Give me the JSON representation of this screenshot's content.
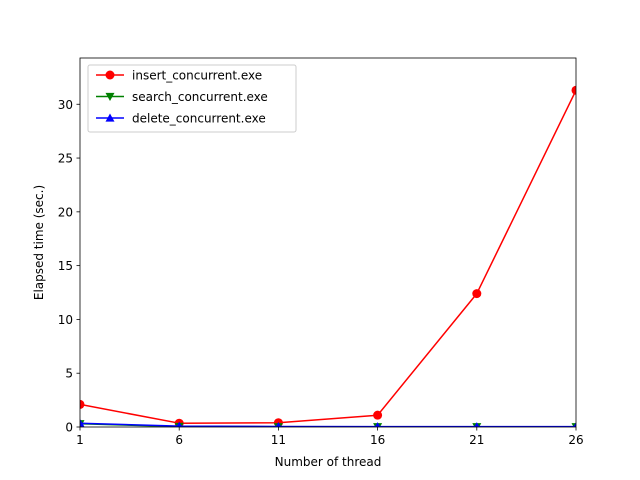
{
  "chart_data": {
    "type": "line",
    "title": "",
    "xlabel": "Number of thread",
    "ylabel": "Elapsed time (sec.)",
    "x": [
      1,
      6,
      11,
      16,
      21,
      26
    ],
    "xlim": [
      1,
      26
    ],
    "ylim": [
      0,
      34.3
    ],
    "xticks": [
      1,
      6,
      11,
      16,
      21,
      26
    ],
    "yticks": [
      0,
      5,
      10,
      15,
      20,
      25,
      30
    ],
    "grid": false,
    "legend_position": "top-left",
    "series": [
      {
        "name": "insert_concurrent.exe",
        "color": "#ff0000",
        "marker": "circle",
        "values": [
          2.1,
          0.35,
          0.4,
          1.1,
          12.4,
          31.3
        ]
      },
      {
        "name": "search_concurrent.exe",
        "color": "#008000",
        "marker": "triangle-down",
        "values": [
          0.3,
          0.05,
          0.03,
          0.02,
          0.02,
          0.02
        ]
      },
      {
        "name": "delete_concurrent.exe",
        "color": "#0000ff",
        "marker": "triangle-up",
        "values": [
          0.35,
          0.08,
          0.05,
          0.04,
          0.04,
          0.04
        ]
      }
    ]
  }
}
